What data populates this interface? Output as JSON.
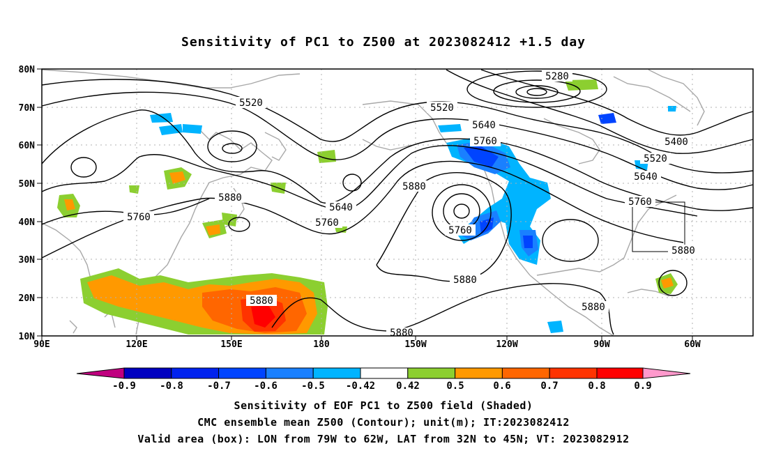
{
  "title": "Sensitivity of PC1 to Z500 at 2023082412 +1.5 day",
  "map": {
    "lat_labels": [
      "80N",
      "70N",
      "60N",
      "50N",
      "40N",
      "30N",
      "20N",
      "10N"
    ],
    "lon_labels": [
      "90E",
      "120E",
      "150E",
      "180",
      "150W",
      "120W",
      "90W",
      "60W"
    ],
    "contour_labels": [
      {
        "text": "5520"
      },
      {
        "text": "5520"
      },
      {
        "text": "5280"
      },
      {
        "text": "5640"
      },
      {
        "text": "5760"
      },
      {
        "text": "5400"
      },
      {
        "text": "5520"
      },
      {
        "text": "5640"
      },
      {
        "text": "5760"
      },
      {
        "text": "5880"
      },
      {
        "text": "5880"
      },
      {
        "text": "5640"
      },
      {
        "text": "5760"
      },
      {
        "text": "5760"
      },
      {
        "text": "5880"
      },
      {
        "text": "5760"
      },
      {
        "text": "5880"
      },
      {
        "text": "5880"
      },
      {
        "text": "5880"
      },
      {
        "text": "5880"
      }
    ],
    "valid_box": {
      "lon_from": "79W",
      "lon_to": "62W",
      "lat_from": "32N",
      "lat_to": "45N"
    }
  },
  "colorbar": {
    "labels": [
      "-0.9",
      "-0.8",
      "-0.7",
      "-0.6",
      "-0.5",
      "-0.42",
      "0.42",
      "0.5",
      "0.6",
      "0.7",
      "0.8",
      "0.9"
    ],
    "colors": [
      "#c0007f",
      "#0000c0",
      "#0022ee",
      "#0044ff",
      "#1a80ff",
      "#00b4ff",
      "#ffffff",
      "#8ccf30",
      "#ff9900",
      "#ff6600",
      "#ff3300",
      "#ff0000",
      "#ff99cc"
    ]
  },
  "footer": {
    "line1": "Sensitivity of EOF PC1 to Z500 field (Shaded)",
    "line2": "CMC ensemble mean Z500 (Contour); unit(m); IT:2023082412",
    "line3": "Valid area (box): LON from 79W to 62W, LAT from 32N to 45N; VT: 2023082912"
  }
}
